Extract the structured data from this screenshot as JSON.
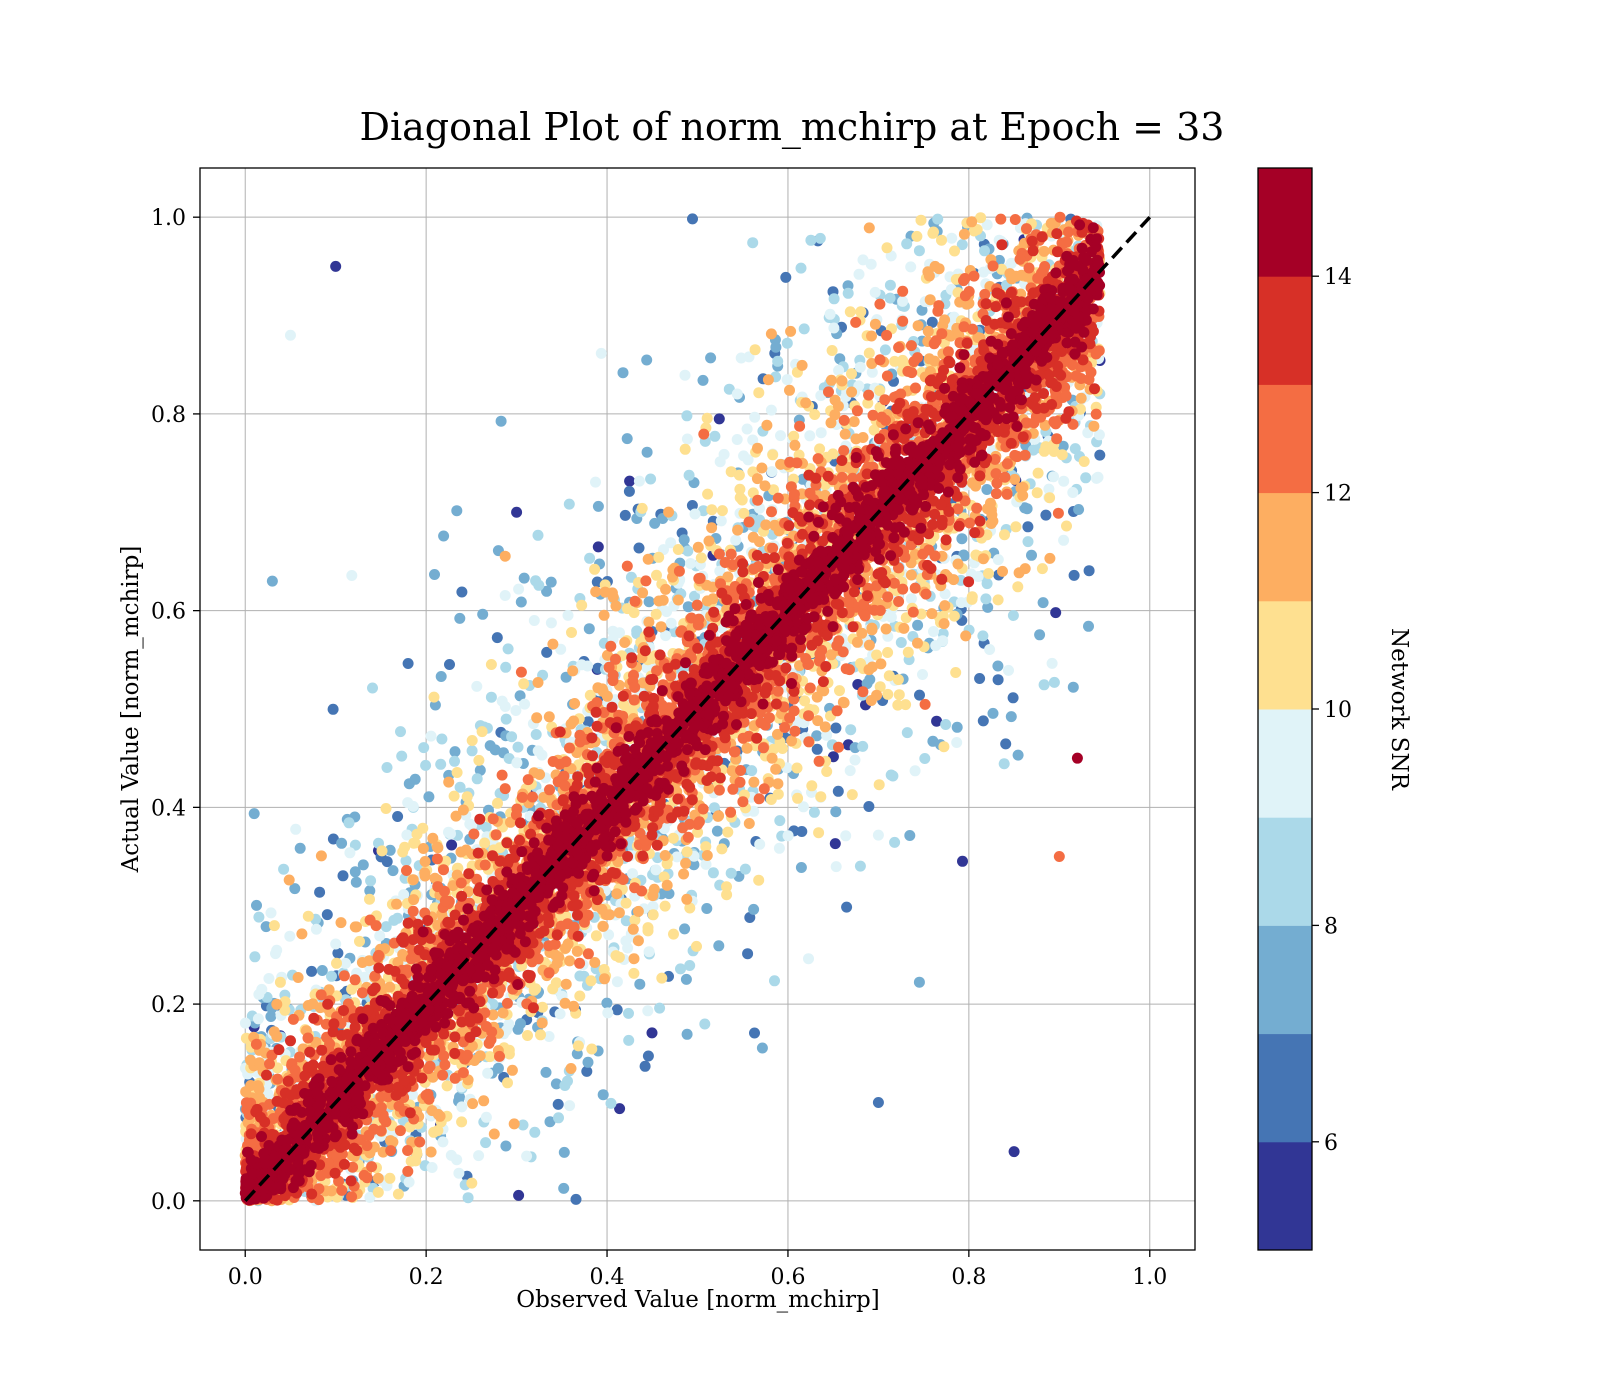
{
  "chart_data": {
    "type": "scatter",
    "title": "Diagonal Plot of norm_mchirp at Epoch = 33",
    "xlabel": "Observed Value [norm_mchirp]",
    "ylabel": "Actual Value [norm_mchirp]",
    "xlim": [
      -0.05,
      1.05
    ],
    "ylim": [
      -0.05,
      1.05
    ],
    "xticks": [
      0.0,
      0.2,
      0.4,
      0.6,
      0.8,
      1.0
    ],
    "yticks": [
      0.0,
      0.2,
      0.4,
      0.6,
      0.8,
      1.0
    ],
    "xtick_labels": [
      "0.0",
      "0.2",
      "0.4",
      "0.6",
      "0.8",
      "1.0"
    ],
    "ytick_labels": [
      "0.0",
      "0.2",
      "0.4",
      "0.6",
      "0.8",
      "1.0"
    ],
    "grid": true,
    "reference_line": {
      "from": [
        0.0,
        0.0
      ],
      "to": [
        1.0,
        1.0
      ],
      "style": "dashed",
      "color": "#000000"
    },
    "colorbar": {
      "label": "Network SNR",
      "min": 5,
      "max": 15,
      "ticks": [
        6,
        8,
        10,
        12,
        14
      ],
      "tick_labels": [
        "6",
        "8",
        "10",
        "12",
        "14"
      ],
      "colors": [
        "#313695",
        "#4575b4",
        "#74add1",
        "#abd9e9",
        "#e0f3f8",
        "#fee090",
        "#fdae61",
        "#f46d43",
        "#d73027",
        "#a50026"
      ]
    },
    "points": [
      [
        0.4,
        0.4,
        14.5
      ],
      [
        0.6,
        0.6,
        14.5
      ],
      [
        0.2,
        0.2,
        14.5
      ],
      [
        0.8,
        0.8,
        14.5
      ],
      [
        0.3,
        0.7,
        5.5
      ],
      [
        0.1,
        0.95,
        5.5
      ],
      [
        0.7,
        0.1,
        6.5
      ],
      [
        0.85,
        0.05,
        5.5
      ],
      [
        0.05,
        0.88,
        9.0
      ],
      [
        0.9,
        0.35,
        12.0
      ],
      [
        0.92,
        0.45,
        14.5
      ],
      [
        0.03,
        0.63,
        7.0
      ]
    ],
    "point_cloud_note_omitted": true
  }
}
